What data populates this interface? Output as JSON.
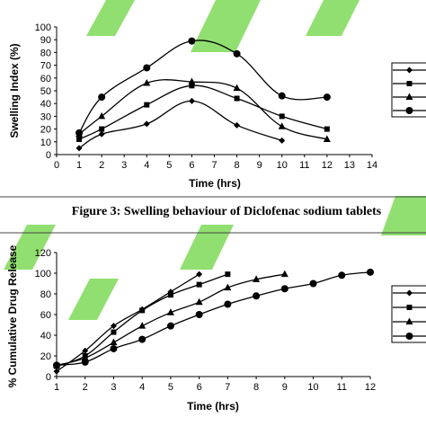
{
  "colors": {
    "ink": "#000000",
    "watermark": "#7ed957",
    "rule": "#444444"
  },
  "figure_caption": "Figure 3: Swelling behaviour of Diclofenac sodium tablets",
  "chart_data": [
    {
      "type": "line",
      "xlabel": "Time (hrs)",
      "ylabel": "Swelling Index (%)",
      "xlim": [
        0,
        14
      ],
      "ylim": [
        0,
        100
      ],
      "xticks": [
        "0",
        "1",
        "2",
        "3",
        "4",
        "5",
        "6",
        "7",
        "8",
        "9",
        "10",
        "11",
        "12",
        "13",
        "14"
      ],
      "yticks": [
        "0",
        "10",
        "20",
        "30",
        "40",
        "50",
        "60",
        "70",
        "80",
        "90",
        "100"
      ],
      "grid": false,
      "legend_position": "right",
      "series": [
        {
          "marker": "diamond",
          "x": [
            1,
            2,
            4,
            6,
            8,
            10
          ],
          "y": [
            5,
            16,
            24,
            42,
            23,
            11
          ]
        },
        {
          "marker": "square",
          "x": [
            1,
            2,
            4,
            6,
            8,
            10,
            12
          ],
          "y": [
            12,
            20,
            39,
            54,
            44,
            30,
            20
          ]
        },
        {
          "marker": "triangle",
          "x": [
            1,
            2,
            4,
            6,
            8,
            10,
            12
          ],
          "y": [
            16,
            30,
            56,
            57,
            52,
            22,
            12
          ]
        },
        {
          "marker": "circle",
          "x": [
            1,
            2,
            4,
            6,
            8,
            10,
            12
          ],
          "y": [
            17,
            45,
            68,
            89,
            79,
            46,
            45
          ]
        }
      ]
    },
    {
      "type": "line",
      "xlabel": "Time (hrs)",
      "ylabel": "% Cumulative Drug Release",
      "xlim": [
        1,
        12
      ],
      "ylim": [
        0,
        120
      ],
      "xticks": [
        "1",
        "2",
        "3",
        "4",
        "5",
        "6",
        "7",
        "8",
        "9",
        "10",
        "11",
        "12"
      ],
      "yticks": [
        "0",
        "20",
        "40",
        "60",
        "80",
        "100",
        "120"
      ],
      "grid": false,
      "legend_position": "right",
      "series": [
        {
          "marker": "diamond",
          "x": [
            1,
            2,
            3,
            4,
            5,
            6
          ],
          "y": [
            5,
            25,
            49,
            65,
            82,
            99
          ]
        },
        {
          "marker": "square",
          "x": [
            1,
            2,
            3,
            4,
            5,
            6,
            7
          ],
          "y": [
            10,
            20,
            43,
            64,
            79,
            89,
            99
          ]
        },
        {
          "marker": "triangle",
          "x": [
            1,
            2,
            3,
            4,
            5,
            6,
            7,
            8,
            9
          ],
          "y": [
            11,
            18,
            33,
            49,
            62,
            72,
            86,
            94,
            99
          ]
        },
        {
          "marker": "circle",
          "x": [
            1,
            2,
            3,
            4,
            5,
            6,
            7,
            8,
            9,
            10,
            11,
            12
          ],
          "y": [
            11,
            14,
            27,
            36,
            49,
            60,
            70,
            78,
            85,
            90,
            98,
            101
          ]
        }
      ]
    }
  ]
}
